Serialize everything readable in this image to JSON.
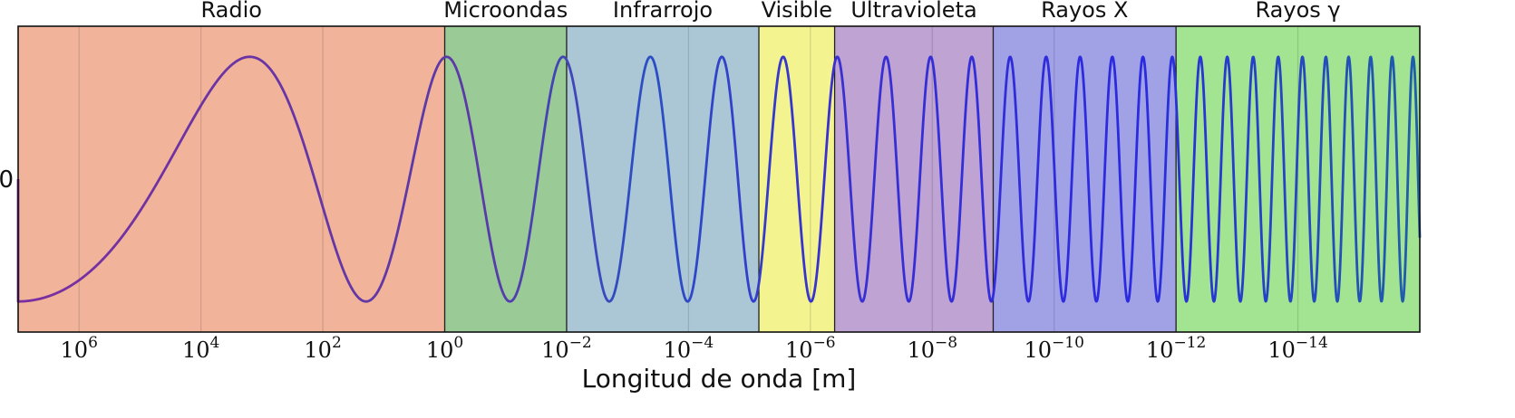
{
  "chart_data": {
    "type": "line",
    "xlabel": "Longitud de onda [m]",
    "ylabel": "",
    "x_scale": "log",
    "x_direction": "decreasing",
    "xlim": [
      10000000,
      1e-16
    ],
    "ylim": [
      -1.2,
      1.2
    ],
    "grid": "vertical lines at major ticks",
    "x_ticks": [
      {
        "base": "10",
        "exp": "6",
        "value": 1000000
      },
      {
        "base": "10",
        "exp": "4",
        "value": 10000
      },
      {
        "base": "10",
        "exp": "2",
        "value": 100
      },
      {
        "base": "10",
        "exp": "0",
        "value": 1
      },
      {
        "base": "10",
        "exp": "−2",
        "value": 0.01
      },
      {
        "base": "10",
        "exp": "−4",
        "value": 0.0001
      },
      {
        "base": "10",
        "exp": "−6",
        "value": 1e-06
      },
      {
        "base": "10",
        "exp": "−8",
        "value": 1e-08
      },
      {
        "base": "10",
        "exp": "−10",
        "value": 1e-10
      },
      {
        "base": "10",
        "exp": "−12",
        "value": 1e-12
      },
      {
        "base": "10",
        "exp": "−14",
        "value": 1e-14
      }
    ],
    "y_ticks": [
      {
        "label": "0",
        "value": 0
      }
    ],
    "bands": [
      {
        "name": "Radio",
        "from": 10000000,
        "to": 1,
        "color": "#f1b49a"
      },
      {
        "name": "Microondas",
        "from": 1,
        "to": 0.01,
        "color": "#9acb97"
      },
      {
        "name": "Infrarrojo",
        "from": 0.01,
        "to": 7e-06,
        "color": "#abc7d6"
      },
      {
        "name": "Visible",
        "from": 7e-06,
        "to": 4e-07,
        "color": "#f3f48f"
      },
      {
        "name": "Ultravioleta",
        "from": 4e-07,
        "to": 1e-09,
        "color": "#bea3d3"
      },
      {
        "name": "Rayos X",
        "from": 1e-09,
        "to": 1e-12,
        "color": "#a1a2e6"
      },
      {
        "name": "Rayos γ",
        "from": 1e-12,
        "to": 1e-16,
        "color": "#a3e492"
      }
    ],
    "series": [
      {
        "type": "sine",
        "amplitude": 1,
        "frequency": "increasing toward shorter wavelength",
        "color": "#4b36c8"
      }
    ]
  }
}
